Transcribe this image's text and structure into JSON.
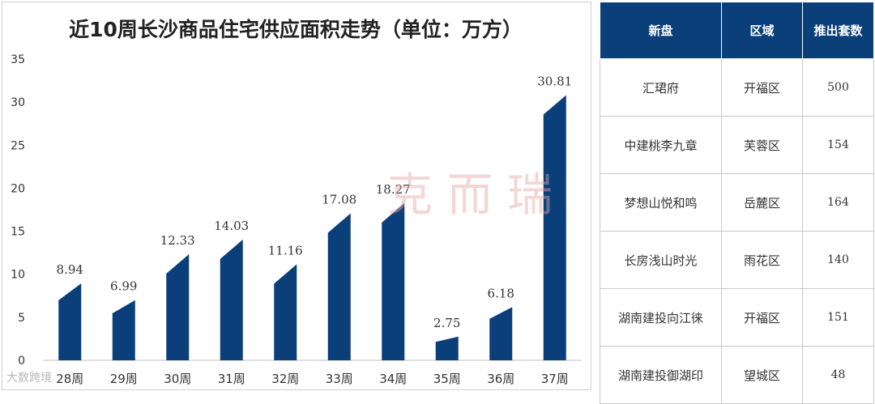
{
  "chart_data": {
    "type": "bar",
    "title": "近10周长沙商品住宅供应面积走势（单位：万方）",
    "categories": [
      "28周",
      "29周",
      "30周",
      "31周",
      "32周",
      "33周",
      "34周",
      "35周",
      "36周",
      "37周"
    ],
    "values": [
      8.94,
      6.99,
      12.33,
      14.03,
      11.16,
      17.08,
      18.27,
      2.75,
      6.18,
      30.81
    ],
    "value_labels": [
      "8.94",
      "6.99",
      "12.33",
      "14.03",
      "11.16",
      "17.08",
      "18.27",
      "2.75",
      "6.18",
      "30.81"
    ],
    "yticks": [
      "0",
      "5",
      "10",
      "15",
      "20",
      "25",
      "30",
      "35"
    ],
    "ylim": [
      0,
      35
    ],
    "grid": false,
    "colors": {
      "bar": "#0b3f7a"
    }
  },
  "table": {
    "headers": [
      "新盘",
      "区域",
      "推出套数"
    ],
    "rows": [
      [
        "汇珺府",
        "开福区",
        "500"
      ],
      [
        "中建桃李九章",
        "芙蓉区",
        "154"
      ],
      [
        "梦想山悦和鸣",
        "岳麓区",
        "164"
      ],
      [
        "长房浅山时光",
        "雨花区",
        "140"
      ],
      [
        "湖南建投向江徕",
        "开福区",
        "151"
      ],
      [
        "湖南建投御湖印",
        "望城区",
        "48"
      ]
    ],
    "colors": {
      "header_bg": "#0b3f7a",
      "header_text": "#ffffff"
    }
  },
  "watermark": "克而瑞",
  "source_mark": "大数跨境"
}
